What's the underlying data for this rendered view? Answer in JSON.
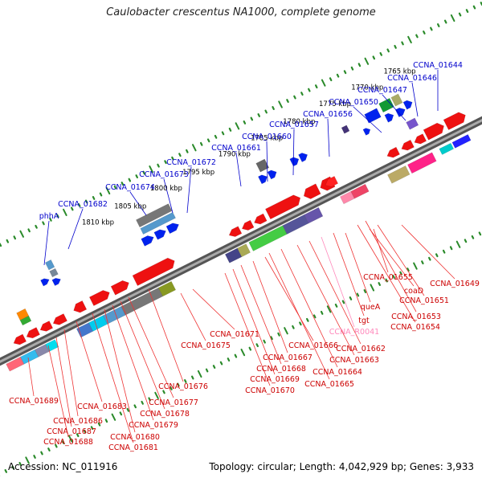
{
  "header": {
    "title": "Caulobacter crescentus NA1000, complete genome"
  },
  "footer": {
    "accession": "Accession: NC_011916",
    "topology": "Topology: circular; Length: 4,042,929 bp; Genes: 3,933"
  },
  "colors": {
    "backbone": "#777777",
    "tick_green": "#2a8a2a",
    "label_blue": "#0000cc",
    "label_red": "#cc0000",
    "label_pink": "#ff88bb",
    "gene_red": "#ee1111",
    "gene_blue": "#0022ee"
  },
  "scale": [
    "1765 kbp",
    "1770 kbp",
    "1775 kbp",
    "1780 kbp",
    "1785 kbp",
    "1790 kbp",
    "1795 kbp",
    "1800 kbp",
    "1805 kbp",
    "1810 kbp"
  ],
  "top_labels": [
    "CCNA_01644",
    "CCNA_01646",
    "CCNA_01647",
    "CCNA_01650",
    "CCNA_01656",
    "CCNA_01657",
    "CCNA_01660",
    "CCNA_01661",
    "CCNA_01672",
    "CCNA_01673",
    "CCNA_01674",
    "CCNA_01682",
    "phhA"
  ],
  "bottom_labels": [
    "CCNA_01649",
    "CCNA_01651",
    "coaD",
    "CCNA_01653",
    "CCNA_01654",
    "CCNA_01655",
    "queA",
    "tgt",
    "CCNA_R0041",
    "CCNA_01662",
    "CCNA_01663",
    "CCNA_01664",
    "CCNA_01665",
    "CCNA_01666",
    "CCNA_01667",
    "CCNA_01668",
    "CCNA_01669",
    "CCNA_01670",
    "CCNA_01671",
    "CCNA_01675",
    "CCNA_01676",
    "CCNA_01677",
    "CCNA_01678",
    "CCNA_01679",
    "CCNA_01680",
    "CCNA_01681",
    "CCNA_01683",
    "CCNA_01686",
    "CCNA_01687",
    "CCNA_01688",
    "CCNA_01689"
  ]
}
